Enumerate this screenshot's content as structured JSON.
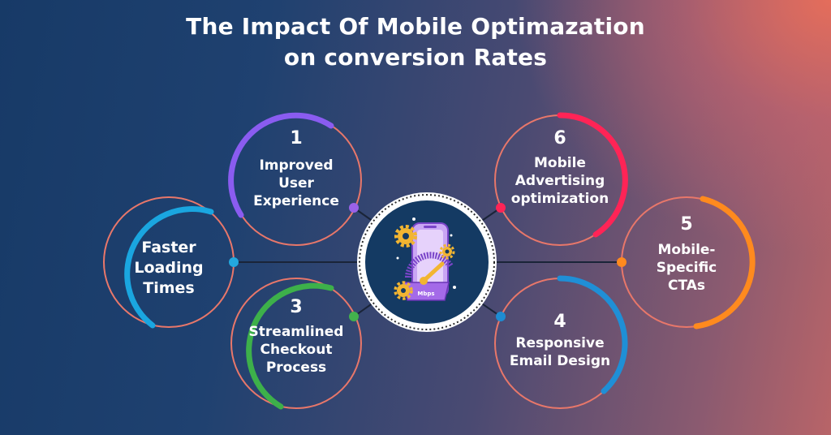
{
  "title": {
    "line1": "The Impact Of Mobile Optimazation",
    "line2": "on conversion Rates"
  },
  "center": {
    "icon": "mobile-speedometer-gears-icon",
    "speedometer_label": "Mbps"
  },
  "items": [
    {
      "number": "1",
      "label": [
        "Improved",
        "User",
        "Experience"
      ],
      "accent": "#8a5cf0",
      "dot": "#9a62e8"
    },
    {
      "number": "",
      "label": [
        "Faster",
        "Loading",
        "Times"
      ],
      "accent": "#1aa6e0",
      "dot": "#23a8de"
    },
    {
      "number": "3",
      "label": [
        "Streamlined",
        "Checkout",
        "Process"
      ],
      "accent": "#3db04a",
      "dot": "#43b14d"
    },
    {
      "number": "4",
      "label": [
        "Responsive",
        "Email Design"
      ],
      "accent": "#1f8fd6",
      "dot": "#1e8cd2"
    },
    {
      "number": "5",
      "label": [
        "Mobile-",
        "Specific",
        "CTAs"
      ],
      "accent": "#ff8a1e",
      "dot": "#ff8a1e"
    },
    {
      "number": "6",
      "label": [
        "Mobile",
        "Advertising",
        "optimization"
      ],
      "accent": "#ff2456",
      "dot": "#ff2456"
    }
  ],
  "colors": {
    "ring_base": "#e8776a",
    "connector": "#1a2438",
    "center_fill": "#143a63"
  }
}
